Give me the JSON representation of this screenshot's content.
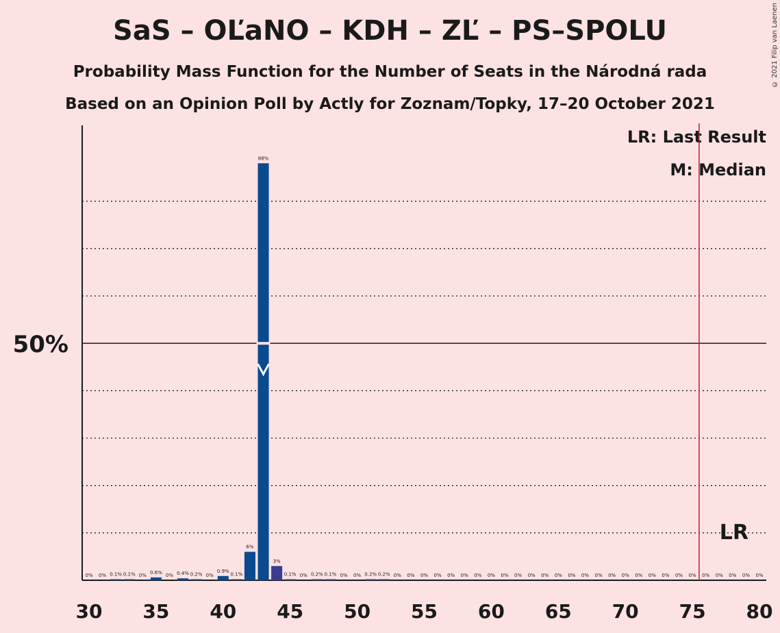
{
  "title": "SaS – OĽaNO – KDH – ZĽ – PS–SPOLU",
  "subtitle": "Probability Mass Function for the Number of Seats in the Národná rada",
  "subtitle2": "Based on an Opinion Poll by Actly for Zoznam/Topky, 17–20 October 2021",
  "copyright": "© 2021 Filip van Laenen",
  "legend": {
    "last_result": "LR: Last Result",
    "median": "M: Median"
  },
  "colors": {
    "background": "#fde2e4",
    "bar": "#0a4a8f",
    "bar_after": "#3b3b8f",
    "last_result_line": "#c0202a"
  },
  "chart_data": {
    "type": "bar",
    "xlabel": "",
    "ylabel": "",
    "x": [
      30,
      31,
      32,
      33,
      34,
      35,
      36,
      37,
      38,
      39,
      40,
      41,
      42,
      43,
      44,
      45,
      46,
      47,
      48,
      49,
      50,
      51,
      52,
      53,
      54,
      55,
      56,
      57,
      58,
      59,
      60,
      61,
      62,
      63,
      64,
      65,
      66,
      67,
      68,
      69,
      70,
      71,
      72,
      73,
      74,
      75,
      76,
      77,
      78,
      79,
      80
    ],
    "values": [
      0,
      0,
      0.1,
      0.1,
      0,
      0.6,
      0,
      0.4,
      0.2,
      0,
      0.9,
      0.1,
      6,
      88,
      3,
      0.1,
      0,
      0.2,
      0.1,
      0,
      0,
      0.2,
      0.2,
      0,
      0,
      0,
      0,
      0,
      0,
      0,
      0,
      0,
      0,
      0,
      0,
      0,
      0,
      0,
      0,
      0,
      0,
      0,
      0,
      0,
      0,
      0,
      0,
      0,
      0,
      0,
      0
    ],
    "labels": [
      "0%",
      "0%",
      "0.1%",
      "0.1%",
      "0%",
      "0.6%",
      "0%",
      "0.4%",
      "0.2%",
      "0%",
      "0.9%",
      "0.1%",
      "6%",
      "88%",
      "3%",
      "0.1%",
      "0%",
      "0.2%",
      "0.1%",
      "0%",
      "0%",
      "0.2%",
      "0.2%",
      "0%",
      "0%",
      "0%",
      "0%",
      "0%",
      "0%",
      "0%",
      "0%",
      "0%",
      "0%",
      "0%",
      "0%",
      "0%",
      "0%",
      "0%",
      "0%",
      "0%",
      "0%",
      "0%",
      "0%",
      "0%",
      "0%",
      "0%",
      "0%",
      "0%",
      "0%",
      "0%",
      "0%"
    ],
    "x_ticks": [
      30,
      35,
      40,
      45,
      50,
      55,
      60,
      65,
      70,
      75,
      80
    ],
    "y_tick_label": "50%",
    "y_tick_value": 50,
    "ylim": [
      0,
      96
    ],
    "gridlines": [
      10,
      20,
      30,
      40,
      60,
      70,
      80
    ],
    "median": 43,
    "median_marker": "M",
    "last_result": 76,
    "last_result_marker": "LR"
  }
}
